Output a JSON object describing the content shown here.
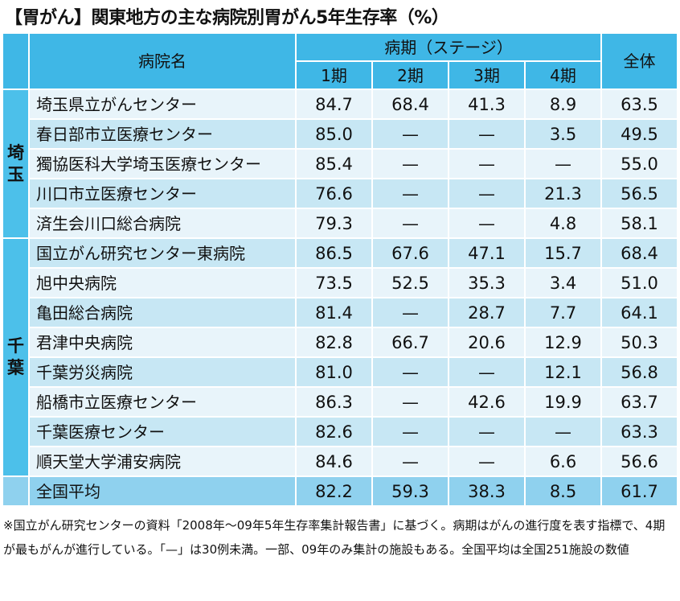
{
  "title": "【胃がん】関東地方の主な病院別胃がん5年生存率（%）",
  "header": {
    "hospital": "病院名",
    "stage_group": "病期（ステージ）",
    "stages": [
      "1期",
      "2期",
      "3期",
      "4期"
    ],
    "total": "全体"
  },
  "groups": [
    {
      "prefecture": [
        "埼",
        "玉"
      ],
      "rows": [
        {
          "name": "埼玉県立がんセンター",
          "s1": "84.7",
          "s2": "68.4",
          "s3": "41.3",
          "s4": "8.9",
          "total": "63.5"
        },
        {
          "name": "春日部市立医療センター",
          "s1": "85.0",
          "s2": "—",
          "s3": "—",
          "s4": "3.5",
          "total": "49.5"
        },
        {
          "name": "獨協医科大学埼玉医療センター",
          "s1": "85.4",
          "s2": "—",
          "s3": "—",
          "s4": "—",
          "total": "55.0"
        },
        {
          "name": "川口市立医療センター",
          "s1": "76.6",
          "s2": "—",
          "s3": "—",
          "s4": "21.3",
          "total": "56.5"
        },
        {
          "name": "済生会川口総合病院",
          "s1": "79.3",
          "s2": "—",
          "s3": "—",
          "s4": "4.8",
          "total": "58.1"
        }
      ]
    },
    {
      "prefecture": [
        "千",
        "葉"
      ],
      "rows": [
        {
          "name": "国立がん研究センター東病院",
          "s1": "86.5",
          "s2": "67.6",
          "s3": "47.1",
          "s4": "15.7",
          "total": "68.4"
        },
        {
          "name": "旭中央病院",
          "s1": "73.5",
          "s2": "52.5",
          "s3": "35.3",
          "s4": "3.4",
          "total": "51.0"
        },
        {
          "name": "亀田総合病院",
          "s1": "81.4",
          "s2": "—",
          "s3": "28.7",
          "s4": "7.7",
          "total": "64.1"
        },
        {
          "name": "君津中央病院",
          "s1": "82.8",
          "s2": "66.7",
          "s3": "20.6",
          "s4": "12.9",
          "total": "50.3"
        },
        {
          "name": "千葉労災病院",
          "s1": "81.0",
          "s2": "—",
          "s3": "—",
          "s4": "12.1",
          "total": "56.8"
        },
        {
          "name": "船橋市立医療センター",
          "s1": "86.3",
          "s2": "—",
          "s3": "42.6",
          "s4": "19.9",
          "total": "63.7"
        },
        {
          "name": "千葉医療センター",
          "s1": "82.6",
          "s2": "—",
          "s3": "—",
          "s4": "—",
          "total": "63.3"
        },
        {
          "name": "順天堂大学浦安病院",
          "s1": "84.6",
          "s2": "—",
          "s3": "—",
          "s4": "6.6",
          "total": "56.6"
        }
      ]
    }
  ],
  "national_average": {
    "name": "全国平均",
    "s1": "82.2",
    "s2": "59.3",
    "s3": "38.3",
    "s4": "8.5",
    "total": "61.7"
  },
  "note": "※国立がん研究センターの資料「2008年～09年5年生存率集計報告書」に基づく。病期はがんの進行度を表す指標で、4期が最もがんが進行している。「—」は30例未満。一部、09年のみ集計の施設もある。全国平均は全国251施設の数値"
}
